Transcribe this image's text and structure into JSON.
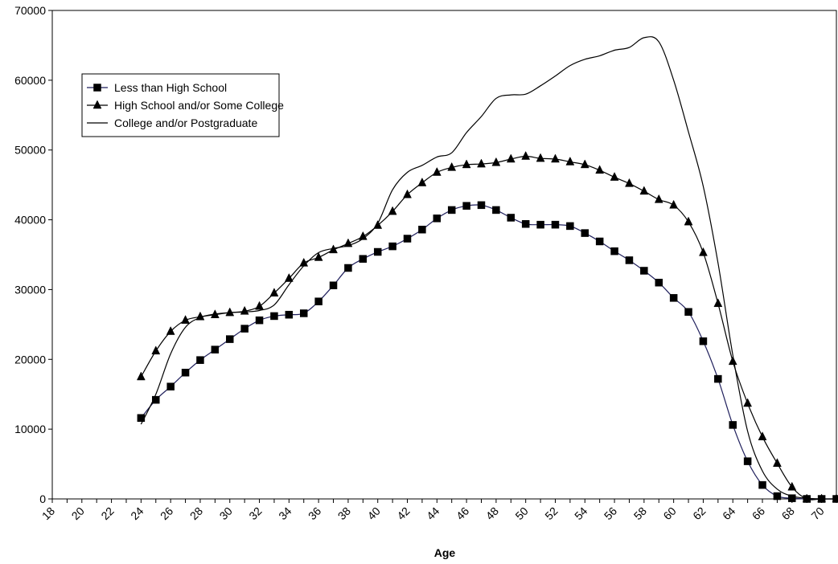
{
  "chart_data": {
    "type": "line",
    "title": "",
    "xlabel": "Age",
    "ylabel": "",
    "xlim": [
      18,
      71
    ],
    "ylim": [
      0,
      70000
    ],
    "x_ticks": [
      "18",
      "20",
      "22",
      "24",
      "26",
      "28",
      "30",
      "32",
      "34",
      "36",
      "38",
      "40",
      "42",
      "44",
      "46",
      "48",
      "50",
      "52",
      "54",
      "56",
      "58",
      "60",
      "62",
      "64",
      "66",
      "68",
      "70"
    ],
    "y_ticks": [
      "0",
      "10000",
      "20000",
      "30000",
      "40000",
      "50000",
      "60000",
      "70000"
    ],
    "grid": false,
    "legend_position": "upper-left",
    "series": [
      {
        "name": "Less than High School",
        "color": "#1f1f5c",
        "marker": "square",
        "x": [
          24,
          25,
          26,
          27,
          28,
          29,
          30,
          31,
          32,
          33,
          34,
          35,
          36,
          37,
          38,
          39,
          40,
          41,
          42,
          43,
          44,
          45,
          46,
          47,
          48,
          49,
          50,
          51,
          52,
          53,
          54,
          55,
          56,
          57,
          58,
          59,
          60,
          61,
          62,
          63,
          64,
          65,
          66,
          67,
          68,
          69,
          70,
          71
        ],
        "y": [
          11600,
          14200,
          16100,
          18100,
          19900,
          21400,
          22900,
          24400,
          25600,
          26200,
          26400,
          26600,
          28300,
          30600,
          33100,
          34400,
          35400,
          36200,
          37300,
          38600,
          40200,
          41400,
          42000,
          42100,
          41400,
          40300,
          39400,
          39300,
          39300,
          39100,
          38100,
          36900,
          35500,
          34200,
          32700,
          31000,
          28800,
          26800,
          22600,
          17200,
          10600,
          5400,
          2000,
          400,
          100,
          0,
          0,
          0
        ]
      },
      {
        "name": "High School and/or Some College",
        "color": "#000000",
        "marker": "triangle",
        "x": [
          24,
          25,
          26,
          27,
          28,
          29,
          30,
          31,
          32,
          33,
          34,
          35,
          36,
          37,
          38,
          39,
          40,
          41,
          42,
          43,
          44,
          45,
          46,
          47,
          48,
          49,
          50,
          51,
          52,
          53,
          54,
          55,
          56,
          57,
          58,
          59,
          60,
          61,
          62,
          63,
          64,
          65,
          66,
          67,
          68,
          69,
          70,
          71
        ],
        "y": [
          17500,
          21200,
          24000,
          25600,
          26100,
          26400,
          26700,
          26900,
          27600,
          29500,
          31600,
          33800,
          34600,
          35700,
          36600,
          37600,
          39200,
          41200,
          43600,
          45300,
          46800,
          47500,
          47900,
          48000,
          48200,
          48700,
          49100,
          48800,
          48700,
          48300,
          47900,
          47100,
          46100,
          45200,
          44100,
          42900,
          42100,
          39700,
          35300,
          28000,
          19700,
          13700,
          8900,
          5100,
          1700,
          0,
          0,
          0
        ]
      },
      {
        "name": "College and/or Postgraduate",
        "color": "#000000",
        "marker": "none",
        "x": [
          24,
          25,
          26,
          27,
          28,
          29,
          30,
          31,
          32,
          33,
          34,
          35,
          36,
          37,
          38,
          39,
          40,
          41,
          42,
          43,
          44,
          45,
          46,
          47,
          48,
          49,
          50,
          51,
          52,
          53,
          54,
          55,
          56,
          57,
          58,
          59,
          60,
          61,
          62,
          63,
          64,
          65,
          66,
          67,
          68,
          69,
          70,
          71
        ],
        "y": [
          10700,
          15000,
          20800,
          24600,
          26000,
          26500,
          26700,
          26800,
          27000,
          27800,
          30700,
          33400,
          35300,
          35900,
          36300,
          37300,
          39500,
          44300,
          46800,
          47800,
          49000,
          49600,
          52500,
          54800,
          57400,
          57900,
          58000,
          59200,
          60600,
          62100,
          63000,
          63500,
          64300,
          64700,
          66100,
          65500,
          60000,
          52600,
          44800,
          33800,
          20600,
          9700,
          4000,
          1400,
          400,
          100,
          0,
          0
        ]
      }
    ]
  }
}
